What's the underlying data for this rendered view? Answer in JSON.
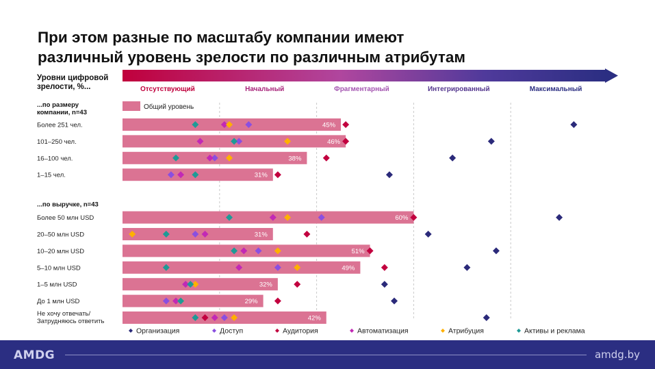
{
  "title": {
    "line1": "При этом разные по масштабу компании имеют",
    "line2": "различный уровень зрелости по различным атрибутам"
  },
  "chart_data": {
    "type": "bar",
    "ylabel": "Уровни цифровой\nзрелости, %...",
    "x_range": [
      0,
      100
    ],
    "x_max_label": "",
    "levels": [
      {
        "label": "Отсутствующий",
        "color": "#c0003c"
      },
      {
        "label": "Начальный",
        "color": "#a8247a"
      },
      {
        "label": "Фрагментарный",
        "color": "#a354b0"
      },
      {
        "label": "Интегрированный",
        "color": "#54378e"
      },
      {
        "label": "Максимальный",
        "color": "#2b2e82"
      }
    ],
    "level_boundaries": [
      20,
      40,
      60,
      80
    ],
    "bar_legend": "Общий уровень",
    "bar_color": "#db7393",
    "series_markers": [
      {
        "key": "org",
        "name": "Организация",
        "color": "#2b2a7a"
      },
      {
        "key": "access",
        "name": "Доступ",
        "color": "#8a4fe0"
      },
      {
        "key": "audience",
        "name": "Аудитория",
        "color": "#c2003f"
      },
      {
        "key": "automation",
        "name": "Автоматизация",
        "color": "#c229b5"
      },
      {
        "key": "attribution",
        "name": "Атрибуция",
        "color": "#ffb000"
      },
      {
        "key": "assets",
        "name": "Активы и реклама",
        "color": "#1f9a96"
      }
    ],
    "groups": [
      {
        "label": "...по размеру\nкомпании, n=43",
        "rows": [
          {
            "label": "Более 251 чел.",
            "value": 45,
            "value_label": "45%",
            "org": 93,
            "access": 26,
            "audience": 46,
            "automation": 21,
            "attribution": 22,
            "assets": 15
          },
          {
            "label": "101–250 чел.",
            "value": 46,
            "value_label": "46%",
            "org": 76,
            "access": 24,
            "audience": 46,
            "automation": 16,
            "attribution": 34,
            "assets": 23
          },
          {
            "label": "16–100 чел.",
            "value": 38,
            "value_label": "38%",
            "org": 68,
            "access": 19,
            "audience": 42,
            "automation": 18,
            "attribution": 22,
            "assets": 11
          },
          {
            "label": "1–15 чел.",
            "value": 31,
            "value_label": "31%",
            "org": 55,
            "access": 10,
            "audience": 32,
            "automation": 12,
            "attribution": null,
            "assets": 15
          }
        ]
      },
      {
        "label": "...по выручке, n=43",
        "rows": [
          {
            "label": "Более 50 млн USD",
            "value": 60,
            "value_label": "60%",
            "org": 90,
            "access": 41,
            "audience": 60,
            "automation": 31,
            "attribution": 34,
            "assets": 22
          },
          {
            "label": "20–50 млн USD",
            "value": 31,
            "value_label": "31%",
            "org": 63,
            "access": 15,
            "audience": 38,
            "automation": 17,
            "attribution": 2,
            "assets": 9
          },
          {
            "label": "10–20 млн USD",
            "value": 51,
            "value_label": "51%",
            "org": 77,
            "access": 28,
            "audience": 51,
            "automation": 25,
            "attribution": 32,
            "assets": 23
          },
          {
            "label": "5–10 млн USD",
            "value": 49,
            "value_label": "49%",
            "org": 71,
            "access": 32,
            "audience": 54,
            "automation": 24,
            "attribution": 36,
            "assets": 9
          },
          {
            "label": "1–5 млн USD",
            "value": 32,
            "value_label": "32%",
            "org": 54,
            "access": 13,
            "audience": 36,
            "automation": 13,
            "attribution": 15,
            "assets": 14
          },
          {
            "label": "До 1 млн USD",
            "value": 29,
            "value_label": "29%",
            "org": 56,
            "access": 9,
            "audience": 32,
            "automation": 11,
            "attribution": 12,
            "assets": 12
          },
          {
            "label": "Не хочу отвечать/\nЗатрудняюсь ответить",
            "value": 42,
            "value_label": "42%",
            "org": 75,
            "access": 21,
            "audience": 17,
            "automation": 19,
            "attribution": 23,
            "assets": 15
          }
        ]
      }
    ]
  },
  "footer": {
    "logo": "AMDG",
    "url": "amdg.by"
  }
}
